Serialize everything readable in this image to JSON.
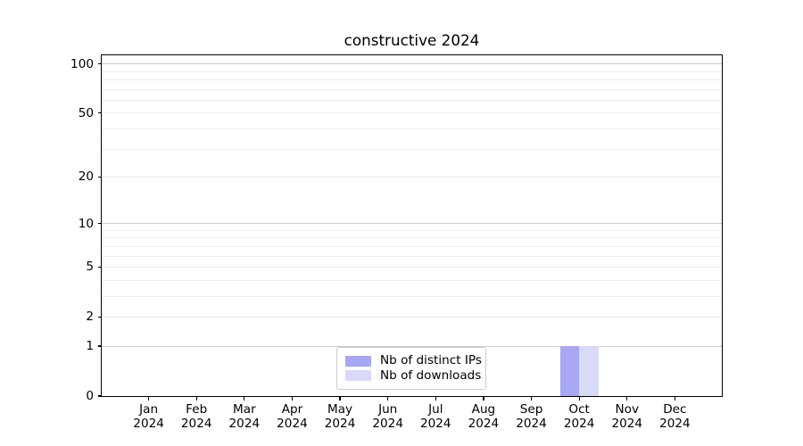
{
  "chart_data": {
    "type": "bar",
    "title": "constructive 2024",
    "categories": [
      "Jan",
      "Feb",
      "Mar",
      "Apr",
      "May",
      "Jun",
      "Jul",
      "Aug",
      "Sep",
      "Oct",
      "Nov",
      "Dec"
    ],
    "x_tick_second_line": "2024",
    "series": [
      {
        "name": "Nb of distinct IPs",
        "color": "#a7a7f3",
        "values": [
          0,
          0,
          0,
          0,
          0,
          0,
          0,
          0,
          0,
          1,
          0,
          0
        ]
      },
      {
        "name": "Nb of downloads",
        "color": "#d9d9f8",
        "values": [
          0,
          0,
          0,
          0,
          0,
          0,
          0,
          0,
          0,
          1,
          0,
          0
        ]
      }
    ],
    "y_axis": {
      "scale": "log10(1+v)",
      "ymin": 0,
      "ymax": 113,
      "tick_values": [
        0,
        1,
        2,
        5,
        10,
        20,
        50,
        100
      ],
      "major_gridlines": [
        1,
        10,
        100
      ],
      "minor_gridlines": [
        2,
        3,
        4,
        5,
        6,
        7,
        8,
        9,
        20,
        30,
        40,
        50,
        60,
        70,
        80,
        90
      ]
    },
    "legend": {
      "position": "lower center"
    },
    "style": {
      "major_grid_color": "#cbcbcb",
      "minor_grid_color": "#ececec",
      "axis_color": "#000000",
      "bar_group_width_fraction": 0.8
    }
  }
}
